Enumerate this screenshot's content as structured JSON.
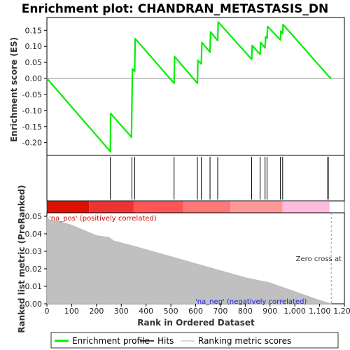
{
  "chart_data": {
    "type": "line",
    "title": "Enrichment plot: CHANDRAN_METASTASIS_DN",
    "xlabel": "Rank in Ordered Dataset",
    "xlim": [
      0,
      1200
    ],
    "x_ticks": [
      "0",
      "100",
      "200",
      "300",
      "400",
      "500",
      "600",
      "700",
      "800",
      "900",
      "1,000",
      "1,100",
      "1,200"
    ],
    "panels": {
      "es": {
        "ylabel": "Enrichment score (ES)",
        "ylim": [
          -0.24,
          0.19
        ],
        "y_ticks": [
          "-0.20",
          "-0.15",
          "-0.10",
          "-0.05",
          "0.00",
          "0.05",
          "0.10",
          "0.15"
        ],
        "y_tick_values": [
          -0.2,
          -0.15,
          -0.1,
          -0.05,
          0.0,
          0.05,
          0.1,
          0.15
        ],
        "series": [
          {
            "name": "Enrichment profile",
            "color": "#00ee00",
            "points": [
              [
                0,
                0.0
              ],
              [
                256,
                -0.228
              ],
              [
                257,
                -0.109
              ],
              [
                341,
                -0.183
              ],
              [
                343,
                -0.08
              ],
              [
                345,
                0.03
              ],
              [
                354,
                0.022
              ],
              [
                356,
                0.124
              ],
              [
                513,
                -0.015
              ],
              [
                515,
                0.068
              ],
              [
                607,
                -0.015
              ],
              [
                609,
                0.056
              ],
              [
                623,
                0.045
              ],
              [
                625,
                0.112
              ],
              [
                658,
                0.082
              ],
              [
                660,
                0.145
              ],
              [
                689,
                0.118
              ],
              [
                691,
                0.176
              ],
              [
                826,
                0.06
              ],
              [
                828,
                0.103
              ],
              [
                860,
                0.075
              ],
              [
                862,
                0.112
              ],
              [
                880,
                0.095
              ],
              [
                882,
                0.13
              ],
              [
                888,
                0.125
              ],
              [
                890,
                0.162
              ],
              [
                942,
                0.12
              ],
              [
                944,
                0.148
              ],
              [
                951,
                0.14
              ],
              [
                953,
                0.168
              ],
              [
                1133,
                0.01
              ],
              [
                1135,
                0.008
              ],
              [
                1147,
                0.0
              ]
            ]
          }
        ]
      },
      "hits": {
        "name": "Hits",
        "positions": [
          256,
          343,
          354,
          513,
          607,
          623,
          658,
          689,
          826,
          860,
          880,
          888,
          942,
          951,
          1133,
          1135
        ]
      },
      "ranked_metric": {
        "ylabel": "Ranked list metric (PreRanked)",
        "name": "Ranking metric scores",
        "ylim": [
          0,
          0.052
        ],
        "y_ticks": [
          "0.00",
          "0.01",
          "0.02",
          "0.03",
          "0.04",
          "0.05"
        ],
        "y_tick_values": [
          0,
          0.01,
          0.02,
          0.03,
          0.04,
          0.05
        ],
        "profile": [
          [
            0,
            0.05
          ],
          [
            10,
            0.048
          ],
          [
            50,
            0.047
          ],
          [
            100,
            0.045
          ],
          [
            200,
            0.039
          ],
          [
            250,
            0.038
          ],
          [
            270,
            0.036
          ],
          [
            350,
            0.033
          ],
          [
            400,
            0.031
          ],
          [
            500,
            0.027
          ],
          [
            600,
            0.023
          ],
          [
            700,
            0.019
          ],
          [
            800,
            0.015
          ],
          [
            900,
            0.012
          ],
          [
            1000,
            0.007
          ],
          [
            1100,
            0.002
          ],
          [
            1147,
            0.0
          ]
        ],
        "pos_label": "'na_pos' (positively correlated)",
        "neg_label": "'na_neg' (negatively correlated)",
        "zero_cross_label": "Zero cross at",
        "zero_cross_x": 1147
      },
      "color_bar": [
        {
          "from": 0,
          "to": 170,
          "color": "#dd1100"
        },
        {
          "from": 170,
          "to": 350,
          "color": "#ee3333"
        },
        {
          "from": 350,
          "to": 550,
          "color": "#ff5555"
        },
        {
          "from": 550,
          "to": 740,
          "color": "#ff7777"
        },
        {
          "from": 740,
          "to": 950,
          "color": "#ff9999"
        },
        {
          "from": 950,
          "to": 1140,
          "color": "#ffbbdd"
        }
      ]
    },
    "legend": [
      {
        "label": "Enrichment profile",
        "color": "#00ee00"
      },
      {
        "label": "Hits",
        "color": "#000000"
      },
      {
        "label": "Ranking metric scores",
        "color": "#cccccc"
      }
    ]
  }
}
